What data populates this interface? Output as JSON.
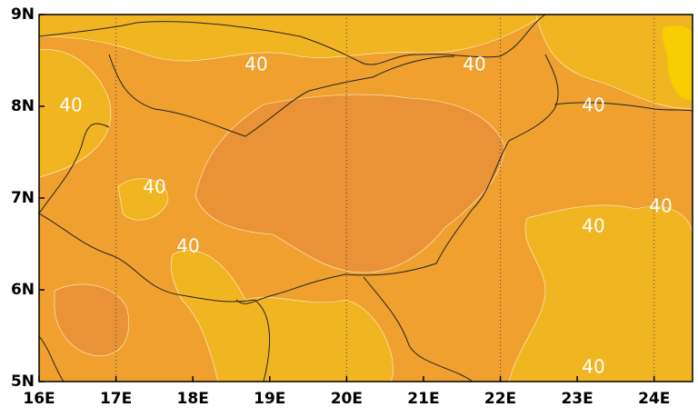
{
  "map": {
    "lonlim": [
      16,
      24.5
    ],
    "latlim": [
      5,
      9
    ],
    "lon_ticks": [
      {
        "value": 16,
        "label": "16E"
      },
      {
        "value": 17,
        "label": "17E"
      },
      {
        "value": 18,
        "label": "18E"
      },
      {
        "value": 19,
        "label": "19E"
      },
      {
        "value": 20,
        "label": "20E"
      },
      {
        "value": 21,
        "label": "21E"
      },
      {
        "value": 22,
        "label": "22E"
      },
      {
        "value": 23,
        "label": "23E"
      },
      {
        "value": 24,
        "label": "24E"
      }
    ],
    "lat_ticks": [
      {
        "value": 5,
        "label": "5N"
      },
      {
        "value": 6,
        "label": "6N"
      },
      {
        "value": 7,
        "label": "7N"
      },
      {
        "value": 8,
        "label": "8N"
      },
      {
        "value": 9,
        "label": "9N"
      }
    ],
    "grid_lons": [
      17,
      20,
      22,
      24
    ],
    "contour_labels": [
      "40",
      "40",
      "40",
      "40",
      "40",
      "40",
      "40",
      "40",
      "40"
    ]
  }
}
